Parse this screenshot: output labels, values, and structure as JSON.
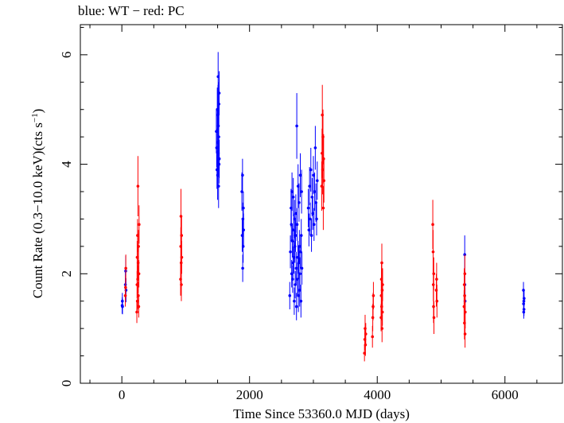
{
  "title": {
    "part1": "blue: WT",
    "sep": " − ",
    "part2": "red: PC"
  },
  "chart_data": {
    "type": "scatter",
    "xlabel": "Time Since 53360.0 MJD (days)",
    "ylabel_main": "Count Rate (0.3−10.0 keV)(cts s",
    "ylabel_sup": "−1",
    "ylabel_end": ")",
    "xlim": [
      -650,
      6900
    ],
    "ylim": [
      0,
      6.55
    ],
    "xticks": [
      0,
      2000,
      4000,
      6000
    ],
    "yticks": [
      0,
      2,
      4,
      6
    ],
    "grid": false,
    "colors": {
      "WT": "#0000ff",
      "PC": "#ff0000"
    },
    "series": [
      {
        "name": "WT",
        "color": "#0000ff",
        "points": [
          [
            5,
            1.42,
            0.15
          ],
          [
            8,
            1.5,
            0.15
          ],
          [
            10,
            1.4,
            0.14
          ],
          [
            55,
            1.8,
            0.25
          ],
          [
            60,
            2.05,
            0.28
          ],
          [
            65,
            1.7,
            0.22
          ],
          [
            1500,
            3.8,
            0.45
          ],
          [
            1500,
            4.4,
            0.5
          ],
          [
            1505,
            4.9,
            0.55
          ],
          [
            1508,
            5.6,
            0.45
          ],
          [
            1510,
            4.2,
            0.4
          ],
          [
            1512,
            4.7,
            0.45
          ],
          [
            1515,
            3.6,
            0.4
          ],
          [
            1518,
            4.5,
            0.35
          ],
          [
            1520,
            5.1,
            0.4
          ],
          [
            1522,
            4.0,
            0.35
          ],
          [
            1524,
            5.3,
            0.4
          ],
          [
            1526,
            4.1,
            0.35
          ],
          [
            1480,
            4.6,
            0.4
          ],
          [
            1485,
            4.3,
            0.35
          ],
          [
            1490,
            3.9,
            0.35
          ],
          [
            1495,
            5.0,
            0.4
          ],
          [
            1880,
            3.5,
            0.35
          ],
          [
            1885,
            2.7,
            0.3
          ],
          [
            1890,
            3.8,
            0.3
          ],
          [
            1893,
            2.1,
            0.25
          ],
          [
            1896,
            3.0,
            0.3
          ],
          [
            1900,
            2.5,
            0.3
          ],
          [
            1903,
            3.2,
            0.3
          ],
          [
            1906,
            2.8,
            0.3
          ],
          [
            2630,
            1.6,
            0.25
          ],
          [
            2640,
            2.4,
            0.3
          ],
          [
            2650,
            3.2,
            0.35
          ],
          [
            2655,
            2.9,
            0.3
          ],
          [
            2660,
            2.0,
            0.25
          ],
          [
            2665,
            3.5,
            0.35
          ],
          [
            2670,
            2.6,
            0.3
          ],
          [
            2675,
            1.9,
            0.25
          ],
          [
            2680,
            2.2,
            0.3
          ],
          [
            2685,
            3.4,
            0.35
          ],
          [
            2690,
            2.8,
            0.3
          ],
          [
            2695,
            2.3,
            0.3
          ],
          [
            2700,
            1.5,
            0.25
          ],
          [
            2705,
            3.0,
            0.35
          ],
          [
            2710,
            2.5,
            0.3
          ],
          [
            2715,
            1.8,
            0.25
          ],
          [
            2720,
            2.7,
            0.3
          ],
          [
            2725,
            3.1,
            0.35
          ],
          [
            2730,
            2.1,
            0.3
          ],
          [
            2735,
            1.4,
            0.25
          ],
          [
            2740,
            4.7,
            0.6
          ],
          [
            2745,
            2.9,
            0.3
          ],
          [
            2750,
            1.9,
            0.3
          ],
          [
            2755,
            2.3,
            0.3
          ],
          [
            2760,
            3.6,
            0.4
          ],
          [
            2765,
            1.6,
            0.3
          ],
          [
            2770,
            2.2,
            0.3
          ],
          [
            2775,
            3.3,
            0.35
          ],
          [
            2780,
            2.5,
            0.3
          ],
          [
            2785,
            1.7,
            0.3
          ],
          [
            2790,
            2.0,
            0.3
          ],
          [
            2795,
            3.8,
            0.4
          ],
          [
            2800,
            2.4,
            0.3
          ],
          [
            2805,
            1.5,
            0.3
          ],
          [
            2810,
            2.7,
            0.3
          ],
          [
            2815,
            3.5,
            0.4
          ],
          [
            2820,
            2.1,
            0.3
          ],
          [
            2920,
            3.2,
            0.35
          ],
          [
            2930,
            2.8,
            0.3
          ],
          [
            2940,
            3.6,
            0.35
          ],
          [
            2950,
            3.0,
            0.3
          ],
          [
            2960,
            3.9,
            0.4
          ],
          [
            2970,
            2.7,
            0.3
          ],
          [
            2980,
            3.4,
            0.35
          ],
          [
            2990,
            3.1,
            0.3
          ],
          [
            3000,
            3.8,
            0.35
          ],
          [
            3010,
            2.9,
            0.3
          ],
          [
            3020,
            3.5,
            0.35
          ],
          [
            3030,
            4.3,
            0.4
          ],
          [
            3040,
            3.3,
            0.35
          ],
          [
            3050,
            3.0,
            0.3
          ],
          [
            3060,
            3.7,
            0.35
          ],
          [
            5370,
            2.35,
            0.35
          ],
          [
            5372,
            1.8,
            0.25
          ],
          [
            5375,
            1.5,
            0.25
          ],
          [
            6290,
            1.7,
            0.15
          ],
          [
            6292,
            1.45,
            0.15
          ],
          [
            6294,
            1.3,
            0.12
          ],
          [
            6296,
            1.5,
            0.15
          ],
          [
            6298,
            1.35,
            0.12
          ],
          [
            6300,
            1.55,
            0.15
          ]
        ]
      },
      {
        "name": "PC",
        "color": "#ff0000",
        "points": [
          [
            55,
            1.6,
            0.2
          ],
          [
            58,
            1.75,
            0.22
          ],
          [
            62,
            2.1,
            0.25
          ],
          [
            235,
            1.3,
            0.2
          ],
          [
            238,
            1.8,
            0.25
          ],
          [
            240,
            2.3,
            0.3
          ],
          [
            243,
            1.5,
            0.2
          ],
          [
            246,
            2.7,
            0.3
          ],
          [
            249,
            1.9,
            0.25
          ],
          [
            252,
            3.6,
            0.55
          ],
          [
            255,
            2.2,
            0.3
          ],
          [
            258,
            1.6,
            0.25
          ],
          [
            261,
            2.5,
            0.3
          ],
          [
            264,
            1.4,
            0.2
          ],
          [
            267,
            2.0,
            0.25
          ],
          [
            270,
            2.9,
            0.35
          ],
          [
            920,
            1.9,
            0.3
          ],
          [
            923,
            2.5,
            0.35
          ],
          [
            926,
            3.05,
            0.5
          ],
          [
            929,
            2.2,
            0.3
          ],
          [
            932,
            1.8,
            0.3
          ],
          [
            935,
            2.7,
            0.35
          ],
          [
            938,
            2.3,
            0.3
          ],
          [
            3130,
            3.6,
            0.45
          ],
          [
            3135,
            4.2,
            0.45
          ],
          [
            3140,
            4.9,
            0.55
          ],
          [
            3145,
            3.9,
            0.45
          ],
          [
            3150,
            4.5,
            0.5
          ],
          [
            3155,
            3.2,
            0.4
          ],
          [
            3160,
            4.1,
            0.45
          ],
          [
            3165,
            3.7,
            0.4
          ],
          [
            3800,
            0.55,
            0.15
          ],
          [
            3805,
            0.8,
            0.2
          ],
          [
            3810,
            1.0,
            0.25
          ],
          [
            3815,
            0.7,
            0.2
          ],
          [
            3820,
            0.9,
            0.2
          ],
          [
            3925,
            0.85,
            0.2
          ],
          [
            3930,
            1.2,
            0.25
          ],
          [
            3935,
            1.4,
            0.25
          ],
          [
            3940,
            1.6,
            0.25
          ],
          [
            4060,
            1.2,
            0.25
          ],
          [
            4063,
            1.6,
            0.3
          ],
          [
            4066,
            1.9,
            0.3
          ],
          [
            4069,
            1.4,
            0.25
          ],
          [
            4072,
            2.2,
            0.35
          ],
          [
            4075,
            1.0,
            0.25
          ],
          [
            4078,
            1.7,
            0.3
          ],
          [
            4081,
            1.3,
            0.25
          ],
          [
            4084,
            1.8,
            0.3
          ],
          [
            4870,
            2.9,
            0.45
          ],
          [
            4875,
            2.4,
            0.4
          ],
          [
            4878,
            1.8,
            0.3
          ],
          [
            4882,
            1.4,
            0.3
          ],
          [
            4885,
            2.0,
            0.3
          ],
          [
            4888,
            1.2,
            0.3
          ],
          [
            4925,
            1.7,
            0.3
          ],
          [
            4930,
            1.9,
            0.3
          ],
          [
            4935,
            1.5,
            0.3
          ],
          [
            5360,
            1.4,
            0.3
          ],
          [
            5363,
            1.8,
            0.3
          ],
          [
            5366,
            1.1,
            0.3
          ],
          [
            5369,
            1.6,
            0.3
          ],
          [
            5372,
            2.0,
            0.35
          ],
          [
            5375,
            0.9,
            0.25
          ],
          [
            5378,
            1.3,
            0.3
          ]
        ]
      }
    ]
  }
}
